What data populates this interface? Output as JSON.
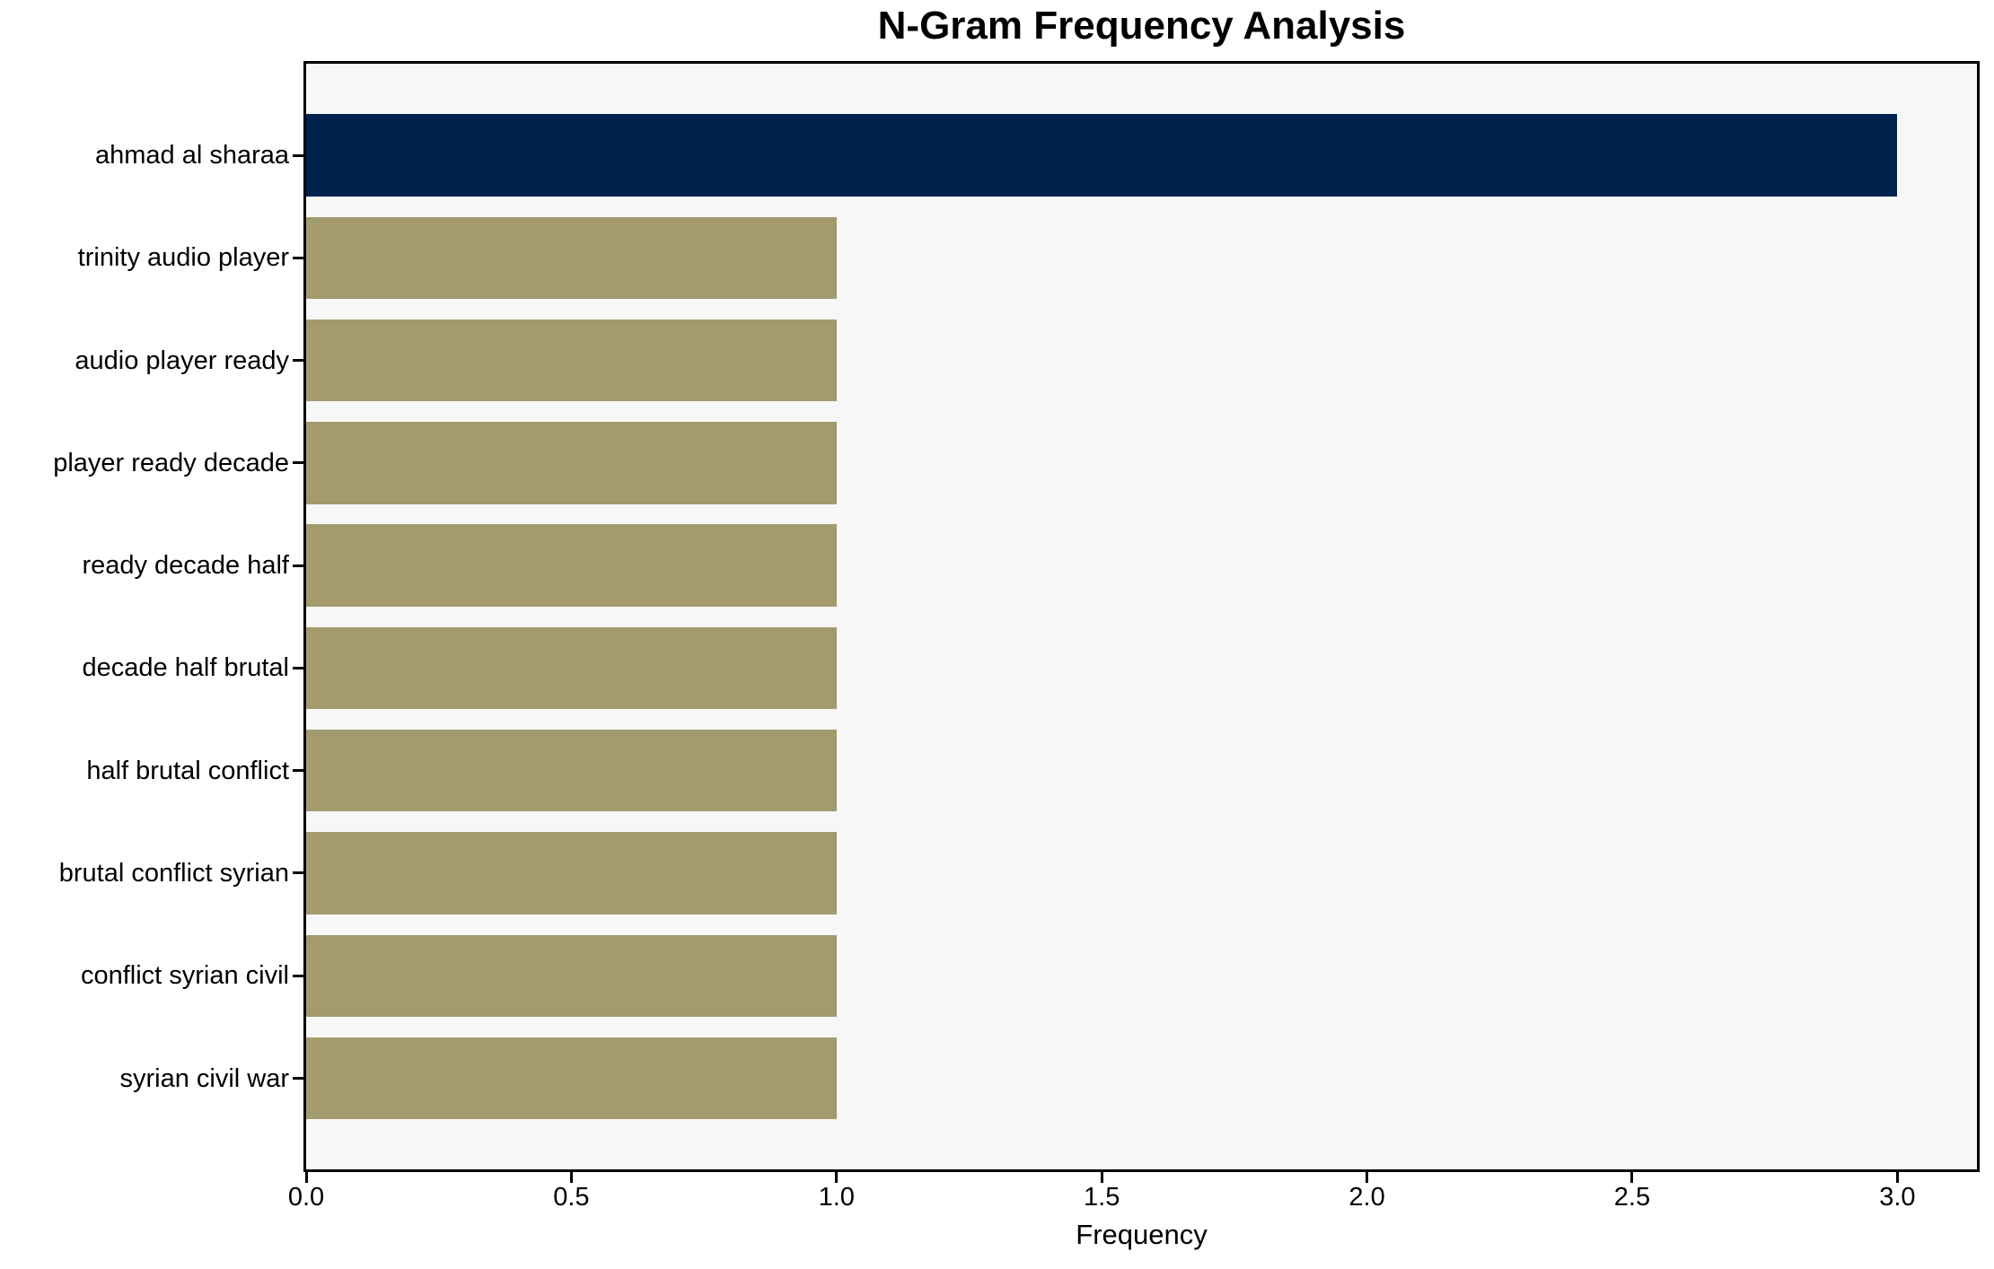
{
  "chart_data": {
    "type": "bar",
    "orientation": "horizontal",
    "title": "N-Gram Frequency Analysis",
    "xlabel": "Frequency",
    "ylabel": "",
    "categories": [
      "ahmad al sharaa",
      "trinity audio player",
      "audio player ready",
      "player ready decade",
      "ready decade half",
      "decade half brutal",
      "half brutal conflict",
      "brutal conflict syrian",
      "conflict syrian civil",
      "syrian civil war"
    ],
    "values": [
      3,
      1,
      1,
      1,
      1,
      1,
      1,
      1,
      1,
      1
    ],
    "bar_colors": [
      "#00234e",
      "#a39a6d",
      "#a39a6d",
      "#a39a6d",
      "#a39a6d",
      "#a39a6d",
      "#a39a6d",
      "#a39a6d",
      "#a39a6d",
      "#a39a6d"
    ],
    "xlim": [
      0,
      3.15
    ],
    "xticks": [
      0.0,
      0.5,
      1.0,
      1.5,
      2.0,
      2.5,
      3.0
    ],
    "xtick_labels": [
      "0.0",
      "0.5",
      "1.0",
      "1.5",
      "2.0",
      "2.5",
      "3.0"
    ],
    "grid": false,
    "legend": null,
    "colors": {
      "highlight_bar": "#00234e",
      "default_bar": "#a39a6d",
      "plot_background": "#f7f7f7",
      "figure_background": "#ffffff",
      "spine": "#000000",
      "text": "#000000"
    }
  }
}
